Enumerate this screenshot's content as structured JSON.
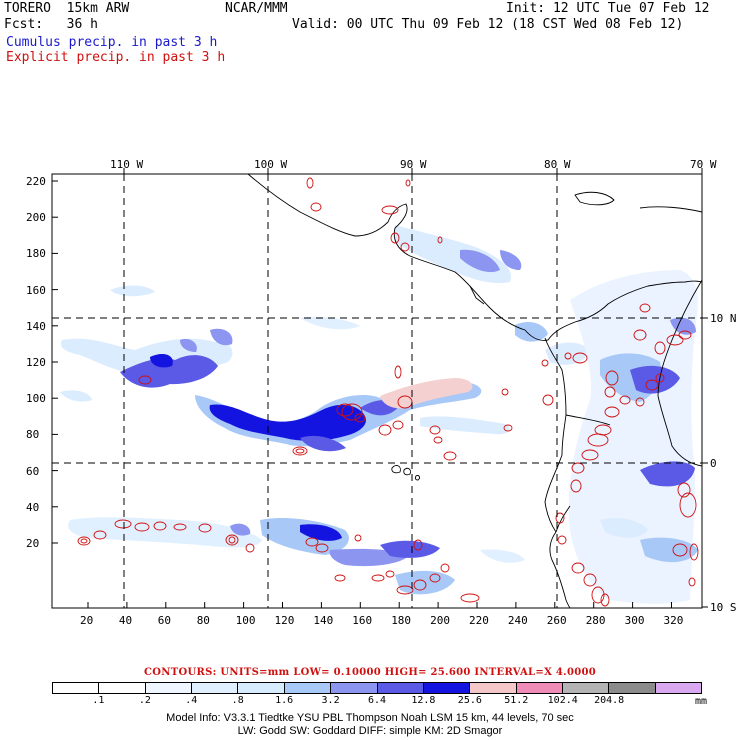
{
  "header": {
    "model": "TORERO  15km ARW",
    "org": "NCAR/MMM",
    "init": "Init: 12 UTC Tue 07 Feb 12",
    "fcst": "Fcst:   36 h",
    "valid": "Valid: 00 UTC Thu 09 Feb 12 (18 CST Wed 08 Feb 12)",
    "legend_cumulus": "Cumulus precip. in past 3 h",
    "legend_explicit": "Explicit precip. in past 3 h"
  },
  "axes": {
    "top_labels": [
      "110 W",
      "100 W",
      "90 W",
      "80 W",
      "70 W"
    ],
    "right_labels": [
      "10 N",
      "0",
      "10 S"
    ],
    "left_ticks": [
      "220",
      "200",
      "180",
      "160",
      "140",
      "120",
      "100",
      "80",
      "60",
      "40",
      "20"
    ],
    "bottom_ticks": [
      "20",
      "40",
      "60",
      "80",
      "100",
      "120",
      "140",
      "160",
      "180",
      "200",
      "220",
      "240",
      "260",
      "280",
      "300",
      "320"
    ]
  },
  "contours_line": "CONTOURS:  UNITS=mm  LOW= 0.10000       HIGH=  25.600       INTERVAL=X  4.0000",
  "scale": {
    "colors": [
      "#ffffff",
      "#ffffff",
      "#f0f6ff",
      "#e0f0ff",
      "#d8ecff",
      "#a8c8f8",
      "#8c96f0",
      "#5a5ae6",
      "#1414e0",
      "#f4c8c8",
      "#f08cb8",
      "#b4b4b4",
      "#8c8c8c",
      "#d8a8f0"
    ],
    "labels": [
      ".1",
      ".2",
      ".4",
      ".8",
      "1.6",
      "3.2",
      "6.4",
      "12.8",
      "25.6",
      "51.2",
      "102.4",
      "204.8"
    ],
    "unit": "mm"
  },
  "footer": {
    "line1": "Model Info: V3.3.1      Tiedtke YSU PBL   Thompson      Noah LSM  15 km,    44 levels,    70 sec",
    "line2": "LW: Godd SW: Goddard DIFF: simple KM: 2D Smagor"
  }
}
